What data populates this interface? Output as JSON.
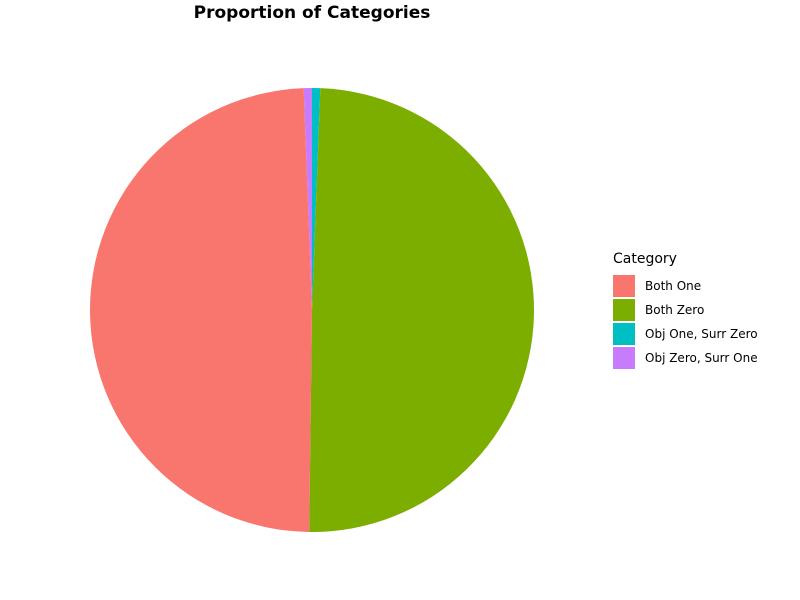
{
  "chart_data": {
    "type": "pie",
    "title": "Proportion of Categories",
    "legend_title": "Category",
    "legend_position": "right",
    "slices": [
      {
        "label": "Both One",
        "value": 49.2,
        "color": "#F8766D"
      },
      {
        "label": "Both Zero",
        "value": 49.6,
        "color": "#7CAE00"
      },
      {
        "label": "Obj One, Surr Zero",
        "value": 0.6,
        "color": "#00BFC4"
      },
      {
        "label": "Obj Zero, Surr One",
        "value": 0.6,
        "color": "#C77CFF"
      }
    ]
  }
}
